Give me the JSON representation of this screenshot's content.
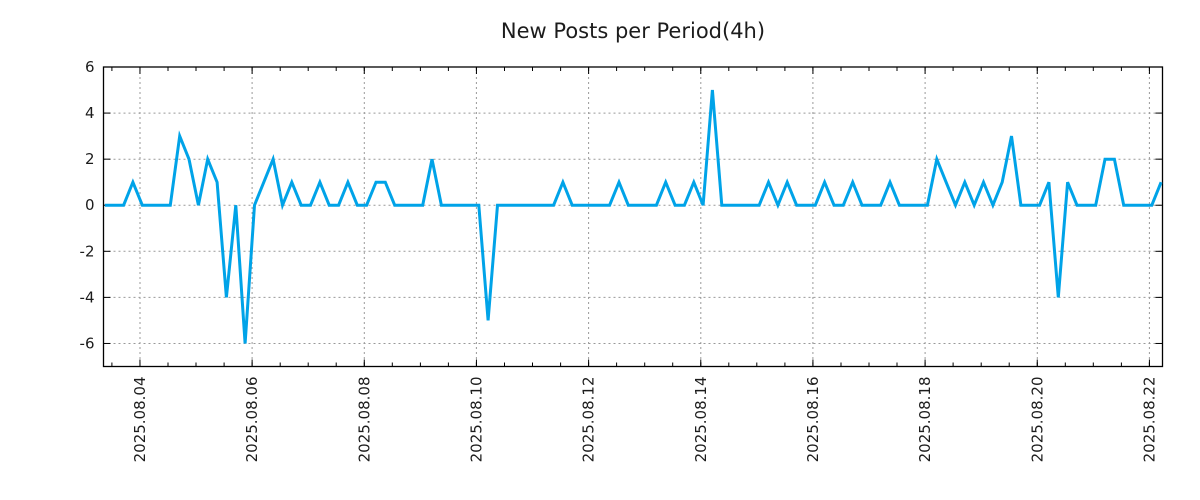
{
  "chart_data": {
    "type": "line",
    "title": "New Posts per Period(4h)",
    "x_start": "2025.08.03 09:00",
    "x_interval_hours": 4,
    "values": [
      0,
      0,
      0,
      1,
      0,
      0,
      0,
      0,
      3,
      2,
      0,
      2,
      1,
      -4,
      0,
      -6,
      0,
      1,
      2,
      0,
      1,
      0,
      0,
      1,
      0,
      0,
      1,
      0,
      0,
      1,
      1,
      0,
      0,
      0,
      0,
      2,
      0,
      0,
      0,
      0,
      0,
      -5,
      0,
      0,
      0,
      0,
      0,
      0,
      0,
      1,
      0,
      0,
      0,
      0,
      0,
      1,
      0,
      0,
      0,
      0,
      1,
      0,
      0,
      1,
      0,
      5,
      0,
      0,
      0,
      0,
      0,
      1,
      0,
      1,
      0,
      0,
      0,
      1,
      0,
      0,
      1,
      0,
      0,
      0,
      1,
      0,
      0,
      0,
      0,
      2,
      1,
      0,
      1,
      0,
      1,
      0,
      1,
      3,
      0,
      0,
      0,
      1,
      -4,
      1,
      0,
      0,
      0,
      2,
      2,
      0,
      0,
      0,
      0,
      1
    ],
    "x_ticks": [
      {
        "label": "2025.08.04",
        "offset_h": 15
      },
      {
        "label": "2025.08.06",
        "offset_h": 63
      },
      {
        "label": "2025.08.08",
        "offset_h": 111
      },
      {
        "label": "2025.08.10",
        "offset_h": 159
      },
      {
        "label": "2025.08.12",
        "offset_h": 207
      },
      {
        "label": "2025.08.14",
        "offset_h": 255
      },
      {
        "label": "2025.08.16",
        "offset_h": 303
      },
      {
        "label": "2025.08.18",
        "offset_h": 351
      },
      {
        "label": "2025.08.20",
        "offset_h": 399
      },
      {
        "label": "2025.08.22",
        "offset_h": 447
      }
    ],
    "x_minor_tick_start_h": 3,
    "x_minor_tick_every_h": 12,
    "xlim_h": [
      -0.6,
      452.6
    ],
    "y_ticks": [
      6,
      4,
      2,
      0,
      -2,
      -4,
      -6
    ],
    "y_gridlines": [
      4,
      2,
      0,
      -2,
      -4,
      -6
    ],
    "ylim": [
      -7,
      6
    ],
    "grid": true,
    "legend": "none",
    "background": "#ffffff",
    "colors": {
      "line": "#00a3e8",
      "grid": "#999999",
      "axis": "#000000",
      "text": "#1c1c1c"
    }
  }
}
